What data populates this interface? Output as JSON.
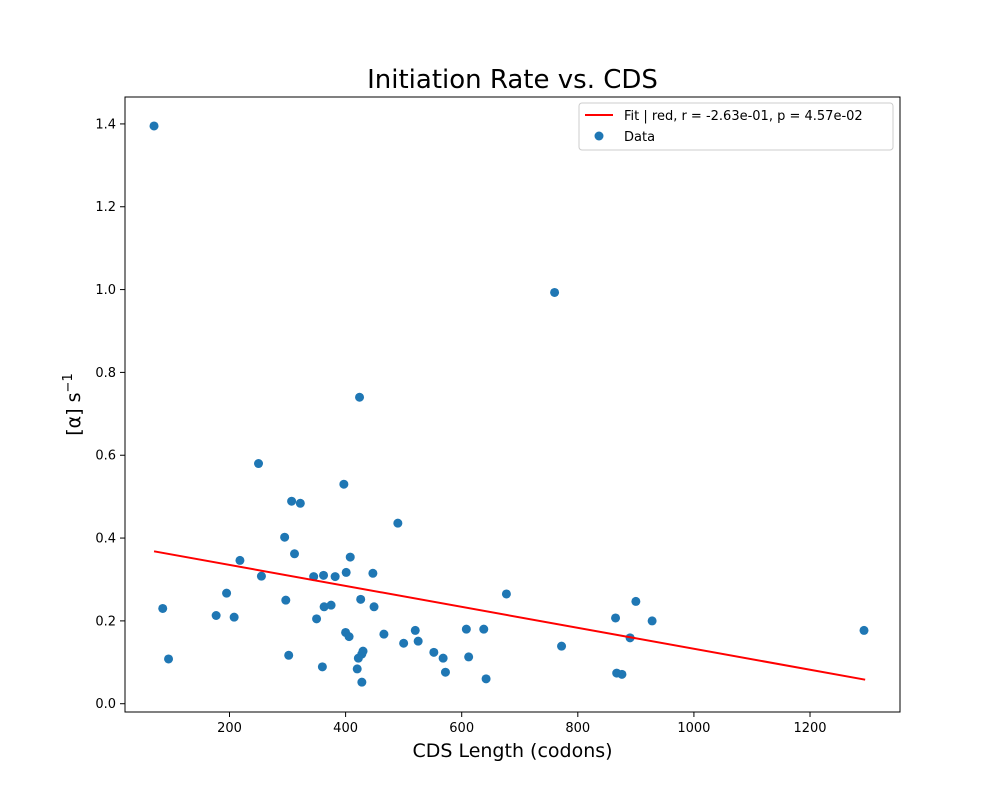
{
  "chart_data": {
    "type": "scatter",
    "title": "Initiation Rate vs. CDS",
    "xlabel": "CDS Length (codons)",
    "ylabel_main": "[α] s",
    "ylabel_sup": "−1",
    "xlim": [
      20,
      1355
    ],
    "ylim": [
      -0.02,
      1.465
    ],
    "xticks": [
      200,
      400,
      600,
      800,
      1000,
      1200
    ],
    "yticks": [
      0.0,
      0.2,
      0.4,
      0.6,
      0.8,
      1.0,
      1.2,
      1.4
    ],
    "legend": {
      "placement": "top-right",
      "fit_label": "Fit |   red, r = -2.63e-01, p = 4.57e-02",
      "data_label": "Data"
    },
    "colors": {
      "points": "#1f77b4",
      "fit": "#ff0000"
    },
    "fit_line": {
      "x": [
        70,
        1295
      ],
      "y": [
        0.368,
        0.058
      ]
    },
    "series": [
      {
        "kind": "points",
        "x": [
          70,
          85,
          95,
          177,
          195,
          208,
          218,
          250,
          255,
          295,
          297,
          302,
          307,
          312,
          322,
          345,
          350,
          360,
          362,
          363,
          375,
          382,
          397,
          400,
          401,
          406,
          408,
          420,
          422,
          424,
          426,
          428,
          428,
          430,
          447,
          449,
          466,
          490,
          500,
          520,
          525,
          552,
          568,
          572,
          608,
          612,
          638,
          642,
          677,
          760,
          772,
          865,
          867,
          876,
          890,
          900,
          928,
          1293
        ],
        "y": [
          1.395,
          0.23,
          0.108,
          0.213,
          0.267,
          0.209,
          0.346,
          0.58,
          0.308,
          0.402,
          0.25,
          0.117,
          0.489,
          0.362,
          0.484,
          0.307,
          0.205,
          0.089,
          0.31,
          0.234,
          0.238,
          0.307,
          0.53,
          0.172,
          0.317,
          0.162,
          0.354,
          0.084,
          0.11,
          0.74,
          0.252,
          0.12,
          0.052,
          0.127,
          0.315,
          0.234,
          0.168,
          0.436,
          0.146,
          0.177,
          0.151,
          0.124,
          0.11,
          0.076,
          0.18,
          0.113,
          0.18,
          0.06,
          0.265,
          0.993,
          0.139,
          0.207,
          0.074,
          0.071,
          0.159,
          0.247,
          0.2,
          0.177
        ]
      }
    ]
  }
}
